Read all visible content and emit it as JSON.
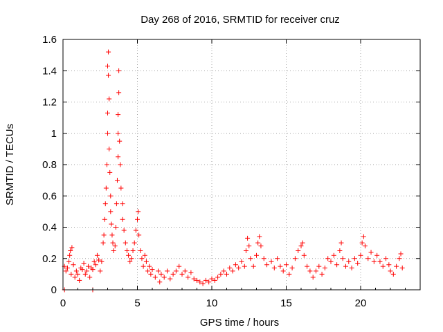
{
  "chart_data": {
    "type": "scatter",
    "title": "Day 268 of 2016, SRMTID for receiver cruz",
    "xlabel": "GPS time / hours",
    "ylabel": "SRMTID / TECUs",
    "xlim": [
      0,
      24
    ],
    "ylim": [
      0,
      1.6
    ],
    "x_ticks": [
      0,
      5,
      10,
      15,
      20
    ],
    "x_tick_labels": [
      "0",
      "5",
      "10",
      "15",
      "20"
    ],
    "y_ticks": [
      0,
      0.2,
      0.4,
      0.6,
      0.8,
      1.0,
      1.2,
      1.4,
      1.6
    ],
    "y_tick_labels": [
      "0",
      "0.2",
      "0.4",
      "0.6",
      "0.8",
      "1",
      "1.2",
      "1.4",
      "1.6"
    ],
    "grid": true,
    "marker": "+",
    "marker_color": "#ff0000",
    "series": [
      {
        "name": "SRMTID",
        "points": [
          [
            0.1,
            0.15
          ],
          [
            0.1,
            0.0
          ],
          [
            0.2,
            0.12
          ],
          [
            0.3,
            0.14
          ],
          [
            0.4,
            0.18
          ],
          [
            0.45,
            0.22
          ],
          [
            0.5,
            0.25
          ],
          [
            0.55,
            0.1
          ],
          [
            0.6,
            0.27
          ],
          [
            0.7,
            0.16
          ],
          [
            0.8,
            0.08
          ],
          [
            0.9,
            0.12
          ],
          [
            1.0,
            0.1
          ],
          [
            1.1,
            0.06
          ],
          [
            1.2,
            0.14
          ],
          [
            1.3,
            0.13
          ],
          [
            1.4,
            0.17
          ],
          [
            1.5,
            0.1
          ],
          [
            1.6,
            0.12
          ],
          [
            1.7,
            0.15
          ],
          [
            1.8,
            0.08
          ],
          [
            1.9,
            0.14
          ],
          [
            2.0,
            0.0
          ],
          [
            2.0,
            0.13
          ],
          [
            2.1,
            0.18
          ],
          [
            2.2,
            0.16
          ],
          [
            2.3,
            0.22
          ],
          [
            2.4,
            0.19
          ],
          [
            2.5,
            0.12
          ],
          [
            2.6,
            0.18
          ],
          [
            2.7,
            0.3
          ],
          [
            2.75,
            0.35
          ],
          [
            2.8,
            0.45
          ],
          [
            2.85,
            0.55
          ],
          [
            2.9,
            0.65
          ],
          [
            2.95,
            0.8
          ],
          [
            3.0,
            1.0
          ],
          [
            3.0,
            1.13
          ],
          [
            3.0,
            1.43
          ],
          [
            3.05,
            1.52
          ],
          [
            3.05,
            1.37
          ],
          [
            3.1,
            1.22
          ],
          [
            3.1,
            0.9
          ],
          [
            3.15,
            0.75
          ],
          [
            3.2,
            0.6
          ],
          [
            3.2,
            0.5
          ],
          [
            3.25,
            0.42
          ],
          [
            3.3,
            0.35
          ],
          [
            3.35,
            0.3
          ],
          [
            3.4,
            0.25
          ],
          [
            3.5,
            0.28
          ],
          [
            3.55,
            0.4
          ],
          [
            3.6,
            0.55
          ],
          [
            3.65,
            0.7
          ],
          [
            3.7,
            0.85
          ],
          [
            3.7,
            1.0
          ],
          [
            3.7,
            1.12
          ],
          [
            3.75,
            1.4
          ],
          [
            3.75,
            1.26
          ],
          [
            3.8,
            0.95
          ],
          [
            3.85,
            0.8
          ],
          [
            3.9,
            0.65
          ],
          [
            4.0,
            0.55
          ],
          [
            4.0,
            0.45
          ],
          [
            4.1,
            0.38
          ],
          [
            4.2,
            0.3
          ],
          [
            4.3,
            0.25
          ],
          [
            4.4,
            0.22
          ],
          [
            4.5,
            0.18
          ],
          [
            4.6,
            0.2
          ],
          [
            4.7,
            0.25
          ],
          [
            4.8,
            0.3
          ],
          [
            4.9,
            0.38
          ],
          [
            5.0,
            0.45
          ],
          [
            5.05,
            0.5
          ],
          [
            5.1,
            0.35
          ],
          [
            5.2,
            0.25
          ],
          [
            5.3,
            0.2
          ],
          [
            5.4,
            0.15
          ],
          [
            5.5,
            0.22
          ],
          [
            5.6,
            0.18
          ],
          [
            5.7,
            0.12
          ],
          [
            5.8,
            0.15
          ],
          [
            5.9,
            0.1
          ],
          [
            6.0,
            0.13
          ],
          [
            6.2,
            0.08
          ],
          [
            6.4,
            0.12
          ],
          [
            6.5,
            0.05
          ],
          [
            6.6,
            0.1
          ],
          [
            6.8,
            0.08
          ],
          [
            7.0,
            0.12
          ],
          [
            7.2,
            0.07
          ],
          [
            7.4,
            0.1
          ],
          [
            7.6,
            0.12
          ],
          [
            7.8,
            0.15
          ],
          [
            8.0,
            0.1
          ],
          [
            8.2,
            0.12
          ],
          [
            8.4,
            0.08
          ],
          [
            8.6,
            0.11
          ],
          [
            8.8,
            0.07
          ],
          [
            9.0,
            0.06
          ],
          [
            9.2,
            0.05
          ],
          [
            9.4,
            0.04
          ],
          [
            9.6,
            0.06
          ],
          [
            9.8,
            0.05
          ],
          [
            10.0,
            0.07
          ],
          [
            10.2,
            0.06
          ],
          [
            10.4,
            0.08
          ],
          [
            10.6,
            0.1
          ],
          [
            10.8,
            0.12
          ],
          [
            11.0,
            0.1
          ],
          [
            11.2,
            0.14
          ],
          [
            11.4,
            0.12
          ],
          [
            11.6,
            0.16
          ],
          [
            11.8,
            0.14
          ],
          [
            12.0,
            0.18
          ],
          [
            12.2,
            0.15
          ],
          [
            12.3,
            0.25
          ],
          [
            12.4,
            0.33
          ],
          [
            12.5,
            0.28
          ],
          [
            12.6,
            0.2
          ],
          [
            12.8,
            0.15
          ],
          [
            13.0,
            0.22
          ],
          [
            13.1,
            0.3
          ],
          [
            13.2,
            0.34
          ],
          [
            13.3,
            0.28
          ],
          [
            13.5,
            0.2
          ],
          [
            13.7,
            0.16
          ],
          [
            14.0,
            0.18
          ],
          [
            14.2,
            0.14
          ],
          [
            14.4,
            0.2
          ],
          [
            14.6,
            0.15
          ],
          [
            14.8,
            0.12
          ],
          [
            15.0,
            0.16
          ],
          [
            15.2,
            0.1
          ],
          [
            15.4,
            0.14
          ],
          [
            15.6,
            0.2
          ],
          [
            15.8,
            0.25
          ],
          [
            16.0,
            0.28
          ],
          [
            16.1,
            0.3
          ],
          [
            16.2,
            0.22
          ],
          [
            16.4,
            0.15
          ],
          [
            16.6,
            0.12
          ],
          [
            16.8,
            0.08
          ],
          [
            17.0,
            0.12
          ],
          [
            17.2,
            0.15
          ],
          [
            17.4,
            0.1
          ],
          [
            17.6,
            0.14
          ],
          [
            17.8,
            0.2
          ],
          [
            18.0,
            0.18
          ],
          [
            18.2,
            0.22
          ],
          [
            18.4,
            0.16
          ],
          [
            18.6,
            0.25
          ],
          [
            18.7,
            0.3
          ],
          [
            18.8,
            0.2
          ],
          [
            19.0,
            0.15
          ],
          [
            19.2,
            0.18
          ],
          [
            19.4,
            0.14
          ],
          [
            19.6,
            0.2
          ],
          [
            19.8,
            0.17
          ],
          [
            20.0,
            0.22
          ],
          [
            20.1,
            0.3
          ],
          [
            20.2,
            0.34
          ],
          [
            20.3,
            0.28
          ],
          [
            20.5,
            0.2
          ],
          [
            20.7,
            0.24
          ],
          [
            20.9,
            0.18
          ],
          [
            21.1,
            0.22
          ],
          [
            21.3,
            0.18
          ],
          [
            21.5,
            0.15
          ],
          [
            21.7,
            0.2
          ],
          [
            21.9,
            0.16
          ],
          [
            22.0,
            0.12
          ],
          [
            22.2,
            0.1
          ],
          [
            22.4,
            0.15
          ],
          [
            22.6,
            0.2
          ],
          [
            22.7,
            0.23
          ],
          [
            22.8,
            0.14
          ]
        ]
      }
    ]
  }
}
